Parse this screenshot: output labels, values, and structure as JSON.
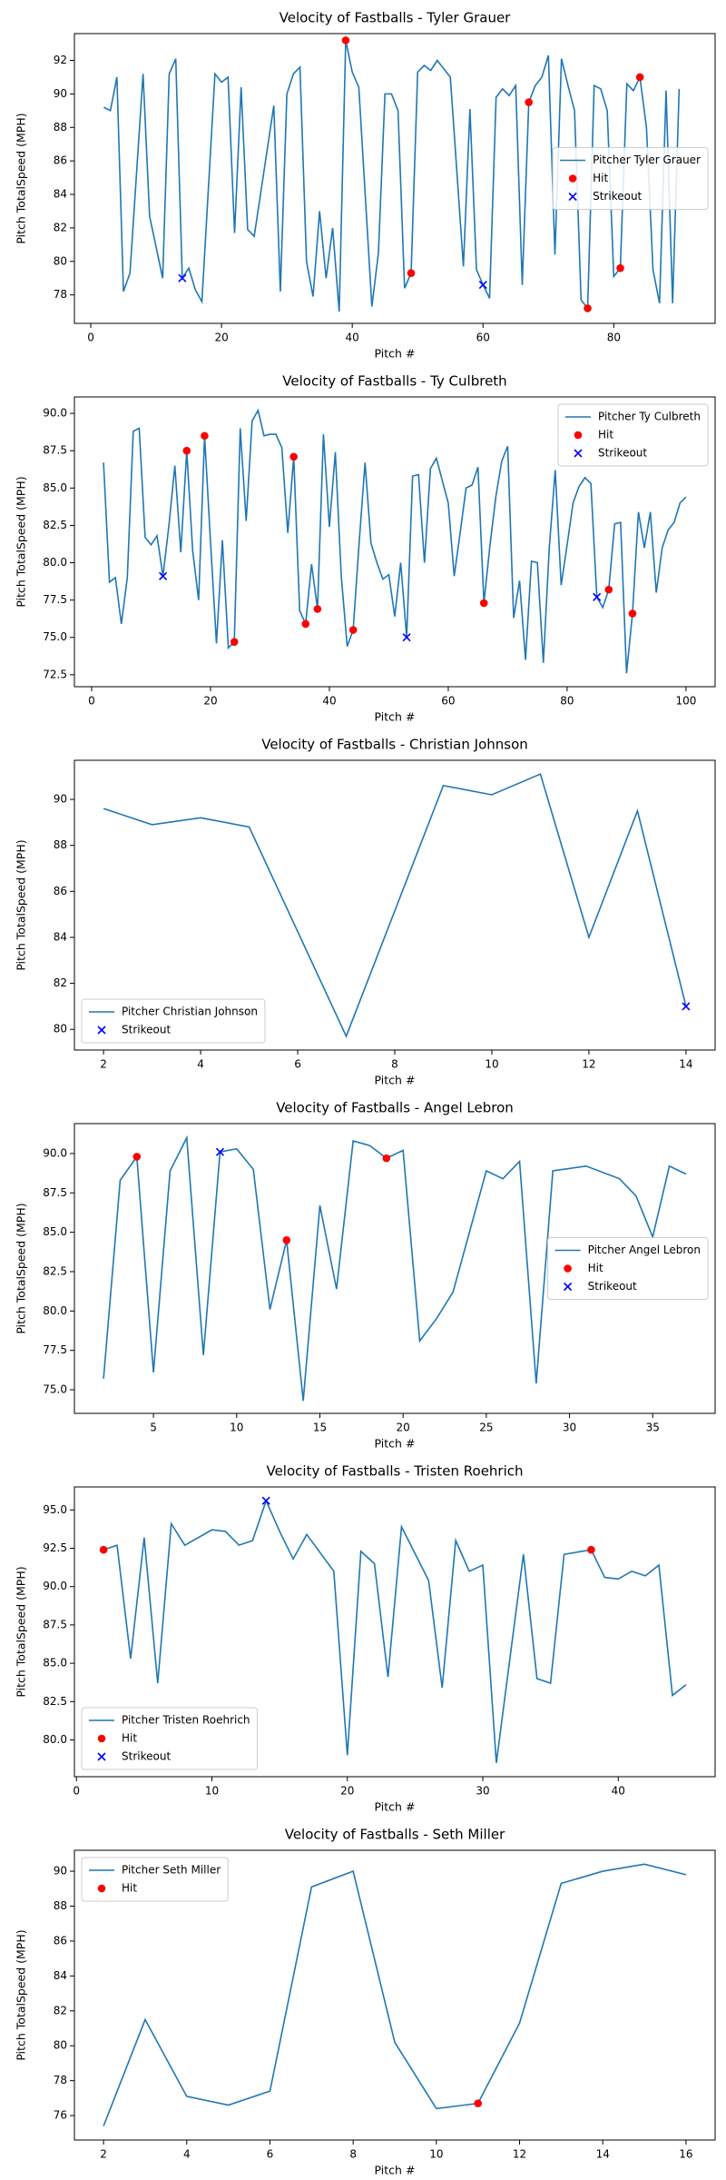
{
  "chart_data": [
    {
      "type": "line",
      "title": "Velocity of Fastballs - Tyler Grauer",
      "xlabel": "Pitch #",
      "ylabel": "Pitch TotalSpeed (MPH)",
      "xlim": [
        -2.5,
        95.5
      ],
      "ylim": [
        76.3,
        93.6
      ],
      "xticks": [
        0,
        20,
        40,
        60,
        80
      ],
      "yticks": [
        78,
        80,
        82,
        84,
        86,
        88,
        90,
        92
      ],
      "legend": "center right",
      "series": [
        {
          "name": "Pitcher Tyler Grauer",
          "color": "#1f77b4",
          "marker": "line",
          "x": [
            2,
            3,
            4,
            5,
            6,
            8,
            9,
            11,
            12,
            13,
            14,
            15,
            16,
            17,
            19,
            20,
            21,
            22,
            23,
            24,
            25,
            28,
            29,
            30,
            31,
            32,
            33,
            34,
            35,
            36,
            37,
            38,
            39,
            40,
            41,
            43,
            44,
            45,
            46,
            47,
            48,
            49,
            50,
            51,
            52,
            53,
            54,
            55,
            57,
            58,
            59,
            60,
            61,
            62,
            63,
            64,
            65,
            66,
            67,
            68,
            69,
            70,
            71,
            72,
            73,
            74,
            75,
            76,
            77,
            78,
            79,
            80,
            81,
            82,
            83,
            84,
            85,
            86,
            87,
            88,
            89,
            90
          ],
          "values": [
            89.2,
            89.0,
            91.0,
            78.2,
            79.3,
            91.2,
            82.7,
            79.0,
            91.2,
            92.1,
            79.0,
            79.6,
            78.3,
            77.6,
            91.2,
            90.7,
            91.0,
            81.7,
            90.4,
            81.9,
            81.5,
            89.3,
            78.2,
            90.0,
            91.2,
            91.6,
            80.0,
            77.9,
            83.0,
            79.0,
            82.0,
            77.0,
            93.2,
            91.3,
            90.4,
            77.3,
            80.5,
            90.0,
            90.0,
            89.0,
            78.4,
            79.3,
            91.3,
            91.7,
            91.4,
            92.0,
            91.5,
            91.0,
            79.7,
            89.1,
            79.5,
            78.6,
            77.8,
            89.8,
            90.3,
            89.9,
            90.5,
            78.6,
            89.5,
            90.5,
            91.0,
            92.3,
            80.4,
            92.1,
            90.5,
            89.0,
            77.7,
            77.2,
            90.5,
            90.3,
            89.0,
            79.1,
            79.6,
            90.6,
            90.2,
            91.0,
            88.0,
            79.5,
            77.5,
            90.2,
            77.5,
            90.3
          ]
        },
        {
          "name": "Hit",
          "color": "red",
          "marker": "circle",
          "x": [
            39,
            49,
            67,
            76,
            81,
            84
          ],
          "values": [
            93.2,
            79.3,
            89.5,
            77.2,
            79.6,
            91.0
          ]
        },
        {
          "name": "Strikeout",
          "color": "blue",
          "marker": "x",
          "x": [
            14,
            60
          ],
          "values": [
            79.0,
            78.6
          ]
        }
      ]
    },
    {
      "type": "line",
      "title": "Velocity of Fastballs - Ty Culbreth",
      "xlabel": "Pitch #",
      "ylabel": "Pitch TotalSpeed (MPH)",
      "xlim": [
        -2.9,
        104.9
      ],
      "ylim": [
        71.7,
        91.1
      ],
      "xticks": [
        0,
        20,
        40,
        60,
        80,
        100
      ],
      "yticks": [
        {
          "value": 72.5,
          "label": "72.5"
        },
        {
          "value": 75,
          "label": "75.0"
        },
        {
          "value": 77.5,
          "label": "77.5"
        },
        {
          "value": 80,
          "label": "80.0"
        },
        {
          "value": 82.5,
          "label": "82.5"
        },
        {
          "value": 85,
          "label": "85.0"
        },
        {
          "value": 87.5,
          "label": "87.5"
        },
        {
          "value": 90,
          "label": "90.0"
        }
      ],
      "legend": "upper right",
      "series": [
        {
          "name": "Pitcher Ty Culbreth",
          "color": "#1f77b4",
          "marker": "line",
          "x": [
            2,
            3,
            4,
            5,
            6,
            7,
            8,
            9,
            10,
            11,
            12,
            13,
            14,
            15,
            16,
            17,
            18,
            19,
            20,
            21,
            22,
            23,
            24,
            25,
            26,
            27,
            28,
            29,
            30,
            31,
            32,
            33,
            34,
            35,
            36,
            37,
            38,
            39,
            40,
            41,
            42,
            43,
            44,
            45,
            46,
            47,
            48,
            49,
            50,
            51,
            52,
            53,
            54,
            55,
            56,
            57,
            58,
            59,
            60,
            61,
            62,
            63,
            64,
            65,
            66,
            67,
            68,
            69,
            70,
            71,
            72,
            73,
            74,
            75,
            76,
            77,
            78,
            79,
            80,
            81,
            82,
            83,
            84,
            85,
            86,
            87,
            88,
            89,
            90,
            91,
            92,
            93,
            94,
            95,
            96,
            97,
            98,
            99,
            100
          ],
          "values": [
            86.7,
            78.7,
            79.0,
            75.9,
            79.0,
            88.8,
            89.0,
            81.7,
            81.2,
            81.8,
            79.1,
            82.5,
            86.5,
            80.7,
            87.5,
            80.8,
            77.5,
            88.5,
            81.4,
            74.6,
            81.5,
            74.3,
            74.7,
            89.0,
            82.8,
            89.5,
            90.2,
            88.5,
            88.6,
            88.6,
            87.7,
            82.0,
            87.1,
            76.8,
            75.9,
            79.9,
            76.9,
            88.6,
            82.4,
            87.4,
            79.1,
            74.4,
            75.5,
            81.3,
            86.7,
            81.3,
            80.0,
            78.9,
            79.2,
            76.4,
            80.0,
            75.0,
            85.8,
            85.9,
            80.0,
            86.3,
            87.0,
            85.5,
            84.0,
            79.1,
            82.0,
            85.0,
            85.2,
            86.4,
            77.3,
            81.1,
            84.4,
            86.8,
            87.8,
            76.3,
            78.8,
            73.5,
            80.1,
            80.0,
            73.3,
            81.0,
            86.2,
            78.5,
            81.2,
            84.0,
            85.1,
            85.7,
            85.3,
            77.7,
            77.0,
            78.2,
            82.6,
            82.7,
            72.6,
            76.6,
            83.4,
            81.0,
            83.4,
            78.0,
            81.0,
            82.2,
            82.7,
            84.0,
            84.4
          ]
        },
        {
          "name": "Hit",
          "color": "red",
          "marker": "circle",
          "x": [
            16,
            19,
            24,
            34,
            36,
            38,
            44,
            66,
            87,
            91
          ],
          "values": [
            87.5,
            88.5,
            74.7,
            87.1,
            75.9,
            76.9,
            75.5,
            77.3,
            78.2,
            76.6
          ]
        },
        {
          "name": "Strikeout",
          "color": "blue",
          "marker": "x",
          "x": [
            12,
            53,
            85
          ],
          "values": [
            79.1,
            75.0,
            77.7
          ]
        }
      ]
    },
    {
      "type": "line",
      "title": "Velocity of Fastballs - Christian Johnson",
      "xlabel": "Pitch #",
      "ylabel": "Pitch TotalSpeed (MPH)",
      "xlim": [
        1.4,
        14.6
      ],
      "ylim": [
        79.1,
        91.7
      ],
      "xticks": [
        2,
        4,
        6,
        8,
        10,
        12,
        14
      ],
      "yticks": [
        80,
        82,
        84,
        86,
        88,
        90
      ],
      "legend": "lower left",
      "series": [
        {
          "name": "Pitcher Christian Johnson",
          "color": "#1f77b4",
          "marker": "line",
          "x": [
            2,
            3,
            4,
            5,
            7,
            9,
            10,
            11,
            12,
            13,
            14
          ],
          "values": [
            89.6,
            88.9,
            89.2,
            88.8,
            79.7,
            90.6,
            90.2,
            91.1,
            84.0,
            89.5,
            81.0
          ]
        },
        {
          "name": "Strikeout",
          "color": "blue",
          "marker": "x",
          "x": [
            14
          ],
          "values": [
            81.0
          ]
        }
      ]
    },
    {
      "type": "line",
      "title": "Velocity of Fastballs - Angel Lebron",
      "xlabel": "Pitch #",
      "ylabel": "Pitch TotalSpeed (MPH)",
      "xlim": [
        0.25,
        38.75
      ],
      "ylim": [
        73.5,
        91.9
      ],
      "xticks": [
        5,
        10,
        15,
        20,
        25,
        30,
        35
      ],
      "yticks": [
        {
          "value": 75,
          "label": "75.0"
        },
        {
          "value": 77.5,
          "label": "77.5"
        },
        {
          "value": 80,
          "label": "80.0"
        },
        {
          "value": 82.5,
          "label": "82.5"
        },
        {
          "value": 85,
          "label": "85.0"
        },
        {
          "value": 87.5,
          "label": "87.5"
        },
        {
          "value": 90,
          "label": "90.0"
        }
      ],
      "legend": "center right",
      "series": [
        {
          "name": "Pitcher Angel Lebron",
          "color": "#1f77b4",
          "marker": "line",
          "x": [
            2,
            3,
            4,
            5,
            6,
            7,
            8,
            9,
            10,
            11,
            12,
            13,
            14,
            15,
            16,
            17,
            18,
            19,
            20,
            21,
            22,
            23,
            25,
            26,
            27,
            28,
            29,
            31,
            33,
            34,
            35,
            36,
            37
          ],
          "values": [
            75.7,
            88.3,
            89.8,
            76.1,
            88.9,
            91.0,
            77.2,
            90.1,
            90.3,
            89.0,
            80.1,
            84.5,
            74.3,
            86.7,
            81.4,
            90.8,
            90.5,
            89.7,
            90.2,
            78.1,
            79.5,
            81.2,
            88.9,
            88.4,
            89.5,
            75.4,
            88.9,
            89.2,
            88.4,
            87.3,
            84.7,
            89.2,
            88.7
          ]
        },
        {
          "name": "Hit",
          "color": "red",
          "marker": "circle",
          "x": [
            4,
            13,
            19
          ],
          "values": [
            89.8,
            84.5,
            89.7
          ]
        },
        {
          "name": "Strikeout",
          "color": "blue",
          "marker": "x",
          "x": [
            9
          ],
          "values": [
            90.1
          ]
        }
      ]
    },
    {
      "type": "line",
      "title": "Velocity of Fastballs - Tristen Roehrich",
      "xlabel": "Pitch #",
      "ylabel": "Pitch TotalSpeed (MPH)",
      "xlim": [
        -0.15,
        47.15
      ],
      "ylim": [
        77.6,
        96.5
      ],
      "xticks": [
        0,
        10,
        20,
        30,
        40
      ],
      "yticks": [
        {
          "value": 80,
          "label": "80.0"
        },
        {
          "value": 82.5,
          "label": "82.5"
        },
        {
          "value": 85,
          "label": "85.0"
        },
        {
          "value": 87.5,
          "label": "87.5"
        },
        {
          "value": 90,
          "label": "90.0"
        },
        {
          "value": 92.5,
          "label": "92.5"
        },
        {
          "value": 95,
          "label": "95.0"
        }
      ],
      "legend": "lower left",
      "series": [
        {
          "name": "Pitcher Tristen Roehrich",
          "color": "#1f77b4",
          "marker": "line",
          "x": [
            2,
            3,
            4,
            5,
            6,
            7,
            8,
            10,
            11,
            12,
            13,
            14,
            15,
            16,
            17,
            19,
            20,
            21,
            22,
            23,
            24,
            26,
            27,
            28,
            29,
            30,
            31,
            33,
            34,
            35,
            36,
            38,
            39,
            40,
            41,
            42,
            43,
            44,
            45
          ],
          "values": [
            92.4,
            92.7,
            85.3,
            93.2,
            83.7,
            94.1,
            92.7,
            93.7,
            93.6,
            92.7,
            93.0,
            95.6,
            93.6,
            91.8,
            93.4,
            91.0,
            79.0,
            92.3,
            91.5,
            84.1,
            93.9,
            90.4,
            83.4,
            93.0,
            91.0,
            91.4,
            78.5,
            92.1,
            84.0,
            83.7,
            92.1,
            92.4,
            90.6,
            90.5,
            91.0,
            90.7,
            91.4,
            82.9,
            83.6
          ]
        },
        {
          "name": "Hit",
          "color": "red",
          "marker": "circle",
          "x": [
            2,
            38
          ],
          "values": [
            92.4,
            92.4
          ]
        },
        {
          "name": "Strikeout",
          "color": "blue",
          "marker": "x",
          "x": [
            14
          ],
          "values": [
            95.6
          ]
        }
      ]
    },
    {
      "type": "line",
      "title": "Velocity of Fastballs - Seth Miller",
      "xlabel": "Pitch #",
      "ylabel": "Pitch TotalSpeed (MPH)",
      "xlim": [
        1.3,
        16.7
      ],
      "ylim": [
        74.6,
        91.2
      ],
      "xticks": [
        2,
        4,
        6,
        8,
        10,
        12,
        14,
        16
      ],
      "yticks": [
        76,
        78,
        80,
        82,
        84,
        86,
        88,
        90
      ],
      "legend": "upper left",
      "series": [
        {
          "name": "Pitcher Seth Miller",
          "color": "#1f77b4",
          "marker": "line",
          "x": [
            2,
            3,
            4,
            5,
            6,
            7,
            8,
            9,
            10,
            11,
            12,
            13,
            14,
            15,
            16
          ],
          "values": [
            75.4,
            81.5,
            77.1,
            76.6,
            77.4,
            89.1,
            90.0,
            80.2,
            76.4,
            76.7,
            81.3,
            89.3,
            90.0,
            90.4,
            89.8
          ]
        },
        {
          "name": "Hit",
          "color": "red",
          "marker": "circle",
          "x": [
            11
          ],
          "values": [
            76.7
          ]
        }
      ]
    }
  ]
}
